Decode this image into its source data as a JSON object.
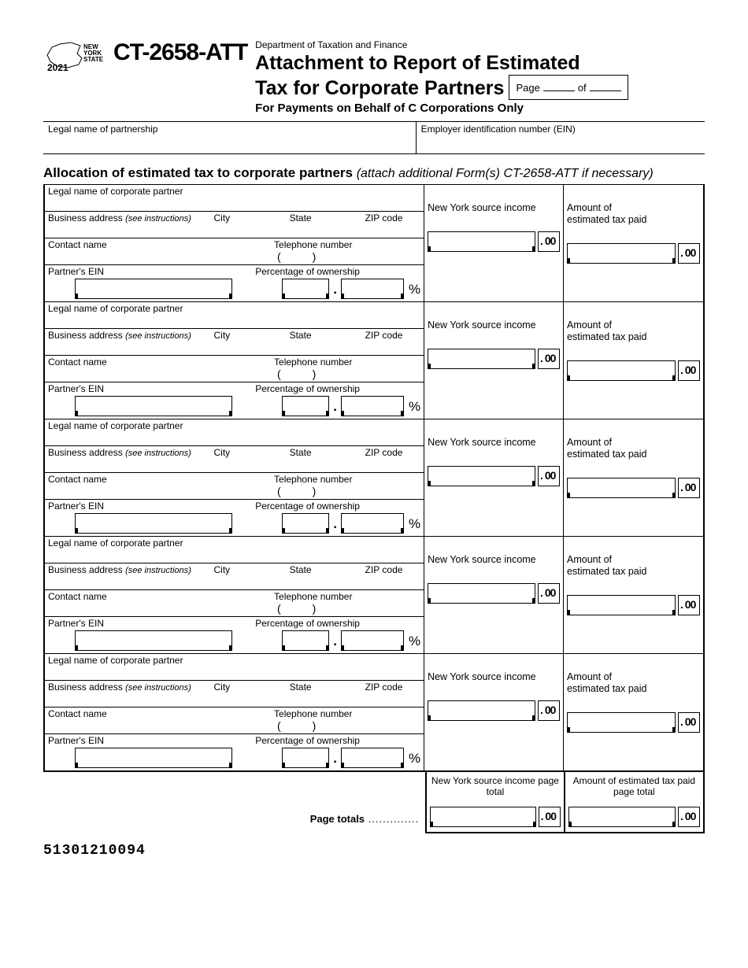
{
  "header": {
    "state_logo_text_1": "NEW",
    "state_logo_text_2": "YORK",
    "state_logo_text_3": "STATE",
    "year": "2021",
    "form_code": "CT-2658-ATT",
    "department": "Department of Taxation and Finance",
    "title_line1": "Attachment to Report of Estimated",
    "title_line2": "Tax for Corporate Partners",
    "subtitle": "For Payments on Behalf of C Corporations Only",
    "page_label": "Page",
    "of_label": "of"
  },
  "top_fields": {
    "legal_name": "Legal name of partnership",
    "ein": "Employer identification number (EIN)"
  },
  "section": {
    "heading": "Allocation of estimated tax to corporate partners",
    "note": "(attach additional Form(s) CT-2658-ATT if necessary)"
  },
  "labels": {
    "legal_partner": "Legal name of corporate partner",
    "business_addr": "Business address",
    "see_instr": "(see instructions)",
    "city": "City",
    "state": "State",
    "zip": "ZIP code",
    "contact": "Contact name",
    "telephone": "Telephone number",
    "partner_ein": "Partner's EIN",
    "pct_owner": "Percentage of ownership",
    "ny_source": "New York source income",
    "amt_label1": "Amount of",
    "amt_label2": "estimated tax paid",
    "cents": "00",
    "pct": "%"
  },
  "totals": {
    "ny_total": "New York source income page total",
    "amt_total": "Amount of estimated tax paid page total",
    "page_totals": "Page totals"
  },
  "barcode": "51301210094",
  "partner_count": 5
}
